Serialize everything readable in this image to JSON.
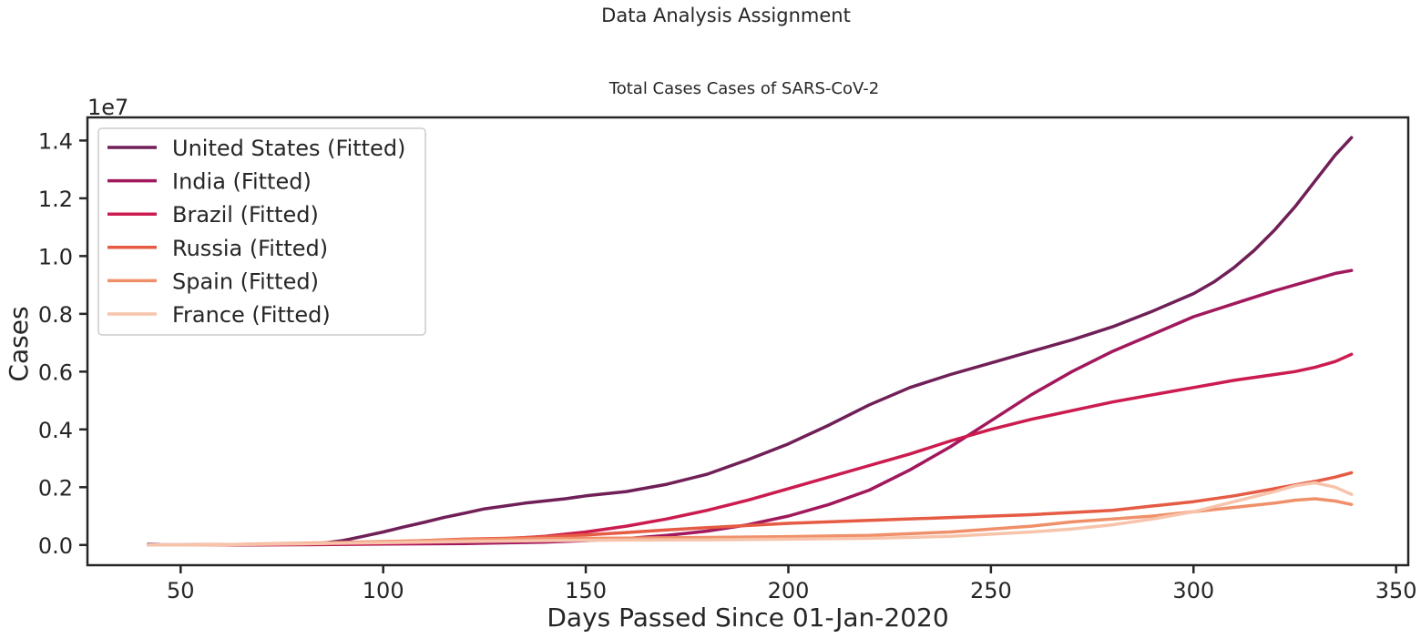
{
  "figure": {
    "supertitle": "Data Analysis Assignment"
  },
  "chart_data": {
    "type": "line",
    "title": "Total Cases Cases of  SARS-CoV-2",
    "xlabel": "Days Passed Since 01-Jan-2020",
    "ylabel": "Cases",
    "y_offset_label": "1e7",
    "xlim": [
      27,
      353
    ],
    "ylim": [
      -700000,
      14800000
    ],
    "x_ticks": [
      50,
      100,
      150,
      200,
      250,
      300,
      350
    ],
    "x_tick_labels": [
      "50",
      "100",
      "150",
      "200",
      "250",
      "300",
      "350"
    ],
    "y_ticks": [
      0,
      2000000,
      4000000,
      6000000,
      8000000,
      10000000,
      12000000,
      14000000
    ],
    "y_tick_labels": [
      "0.0",
      "0.2",
      "0.4",
      "0.6",
      "0.8",
      "1.0",
      "1.2",
      "1.4"
    ],
    "grid": false,
    "legend_position": "top-left",
    "series": [
      {
        "name": "United States (Fitted)",
        "color": "#701f57",
        "x": [
          42,
          45,
          60,
          70,
          80,
          85,
          90,
          95,
          100,
          105,
          110,
          115,
          120,
          125,
          135,
          145,
          150,
          160,
          170,
          180,
          190,
          200,
          210,
          220,
          230,
          240,
          250,
          260,
          270,
          280,
          290,
          300,
          305,
          310,
          315,
          320,
          325,
          330,
          335,
          339
        ],
        "y": [
          20000,
          10000,
          5000,
          10000,
          30000,
          60000,
          150000,
          300000,
          450000,
          620000,
          780000,
          950000,
          1100000,
          1250000,
          1450000,
          1600000,
          1700000,
          1850000,
          2100000,
          2450000,
          2950000,
          3500000,
          4150000,
          4850000,
          5450000,
          5900000,
          6300000,
          6700000,
          7100000,
          7550000,
          8100000,
          8700000,
          9100000,
          9600000,
          10200000,
          10900000,
          11700000,
          12600000,
          13500000,
          14100000
        ]
      },
      {
        "name": "India (Fitted)",
        "color": "#a1185c",
        "x": [
          42,
          50,
          60,
          80,
          100,
          120,
          140,
          150,
          160,
          170,
          180,
          190,
          200,
          210,
          220,
          230,
          240,
          250,
          260,
          270,
          280,
          290,
          300,
          310,
          320,
          330,
          335,
          339
        ],
        "y": [
          0,
          0,
          0,
          10000,
          30000,
          50000,
          100000,
          150000,
          220000,
          330000,
          480000,
          700000,
          1000000,
          1400000,
          1900000,
          2600000,
          3400000,
          4300000,
          5200000,
          6000000,
          6700000,
          7300000,
          7900000,
          8350000,
          8800000,
          9200000,
          9400000,
          9500000
        ]
      },
      {
        "name": "Brazil (Fitted)",
        "color": "#cb1b4f",
        "x": [
          42,
          50,
          60,
          80,
          100,
          120,
          140,
          150,
          160,
          170,
          180,
          190,
          200,
          210,
          220,
          230,
          240,
          250,
          260,
          270,
          280,
          290,
          300,
          310,
          320,
          325,
          330,
          335,
          339
        ],
        "y": [
          0,
          0,
          5000,
          20000,
          50000,
          120000,
          300000,
          450000,
          650000,
          900000,
          1200000,
          1550000,
          1950000,
          2350000,
          2750000,
          3150000,
          3600000,
          4000000,
          4350000,
          4650000,
          4950000,
          5200000,
          5450000,
          5700000,
          5900000,
          6000000,
          6150000,
          6350000,
          6600000
        ]
      },
      {
        "name": "Russia (Fitted)",
        "color": "#e55b44",
        "x": [
          42,
          50,
          60,
          80,
          100,
          120,
          130,
          140,
          150,
          160,
          170,
          180,
          200,
          220,
          240,
          260,
          280,
          290,
          300,
          310,
          320,
          330,
          335,
          339
        ],
        "y": [
          0,
          0,
          10000,
          40000,
          100000,
          200000,
          230000,
          280000,
          350000,
          430000,
          520000,
          600000,
          750000,
          850000,
          950000,
          1050000,
          1200000,
          1350000,
          1500000,
          1700000,
          1950000,
          2200000,
          2350000,
          2500000
        ]
      },
      {
        "name": "Spain (Fitted)",
        "color": "#f0906a",
        "x": [
          42,
          50,
          60,
          80,
          100,
          120,
          140,
          160,
          180,
          200,
          220,
          240,
          260,
          270,
          280,
          290,
          300,
          310,
          320,
          325,
          330,
          335,
          339
        ],
        "y": [
          0,
          0,
          10000,
          60000,
          120000,
          180000,
          220000,
          240000,
          260000,
          290000,
          330000,
          450000,
          650000,
          800000,
          900000,
          1000000,
          1150000,
          1300000,
          1450000,
          1550000,
          1600000,
          1520000,
          1400000
        ]
      },
      {
        "name": "France (Fitted)",
        "color": "#f7c4ab",
        "x": [
          42,
          50,
          60,
          80,
          100,
          120,
          140,
          160,
          180,
          200,
          220,
          240,
          260,
          270,
          280,
          290,
          300,
          310,
          320,
          325,
          330,
          335,
          339
        ],
        "y": [
          0,
          0,
          10000,
          40000,
          80000,
          120000,
          150000,
          170000,
          180000,
          200000,
          230000,
          300000,
          450000,
          550000,
          700000,
          900000,
          1150000,
          1500000,
          1850000,
          2050000,
          2150000,
          2000000,
          1750000
        ]
      }
    ]
  }
}
